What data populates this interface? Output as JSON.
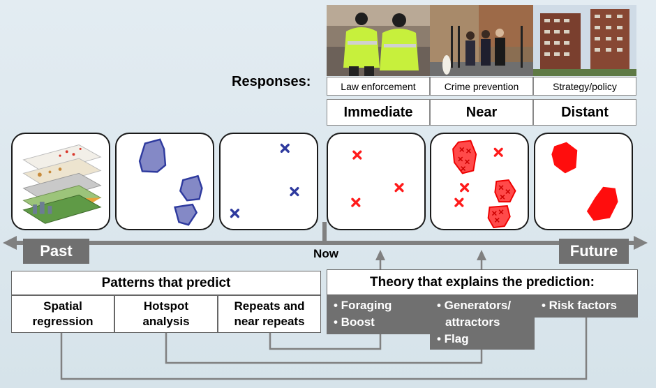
{
  "responses": {
    "title": "Responses:",
    "types": [
      "Law enforcement",
      "Crime prevention",
      "Strategy/policy"
    ],
    "horizons": [
      "Immediate",
      "Near",
      "Distant"
    ]
  },
  "timeline": {
    "past": "Past",
    "now": "Now",
    "future": "Future"
  },
  "patterns": {
    "title": "Patterns that predict",
    "items": [
      {
        "line1": "Spatial",
        "line2": "regression"
      },
      {
        "line1": "Hotspot",
        "line2": "analysis"
      },
      {
        "line1": "Repeats and",
        "line2": "near repeats"
      }
    ]
  },
  "theory": {
    "title": "Theory that explains the prediction:",
    "groups": [
      [
        "• Foraging",
        "• Boost"
      ],
      [
        "• Generators/",
        "attractors",
        "• Flag"
      ],
      [
        "• Risk factors"
      ]
    ]
  },
  "colors": {
    "blue_hotspot": "#8489c6",
    "blue_marker": "#2e3a9e",
    "red": "#ff1a1a",
    "grey_label": "#707070",
    "connector": "#7f7f7f"
  }
}
